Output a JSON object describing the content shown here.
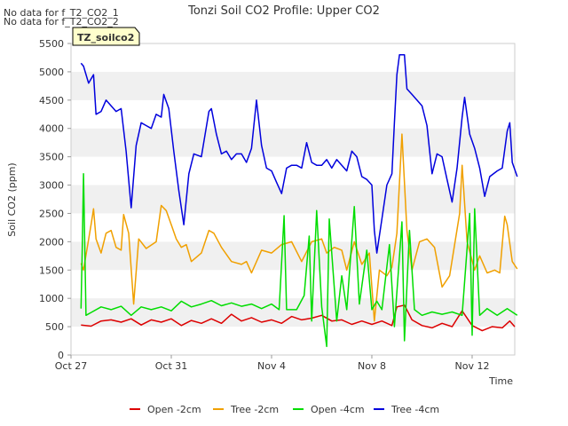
{
  "no_data_notes": [
    "No data for f_T2_CO2_1",
    "No data for f_T2_CO2_2"
  ],
  "badge": {
    "label": "TZ_soilco2",
    "fill": "#ffffcc",
    "text_color": "#990000"
  },
  "colors": {
    "band": "#f0f0f0",
    "axis": "#cccccc"
  },
  "chart_data": {
    "type": "line",
    "title": "Tonzi Soil CO2 Profile: Upper CO2",
    "xlabel": "Time",
    "ylabel": "Soil CO2 (ppm)",
    "xlim": [
      0,
      17.7
    ],
    "ylim": [
      0,
      5500
    ],
    "yticks": [
      0,
      500,
      1000,
      1500,
      2000,
      2500,
      3000,
      3500,
      4000,
      4500,
      5000,
      5500
    ],
    "xticks": [
      {
        "value": 0,
        "label": "Oct 27"
      },
      {
        "value": 4,
        "label": "Oct 31"
      },
      {
        "value": 8,
        "label": "Nov 4"
      },
      {
        "value": 12,
        "label": "Nov 8"
      },
      {
        "value": 16,
        "label": "Nov 12"
      }
    ],
    "legend_position": "bottom",
    "series": [
      {
        "name": "Open -2cm",
        "color": "#dd0000",
        "points": [
          [
            0.4,
            530
          ],
          [
            0.8,
            510
          ],
          [
            1.2,
            600
          ],
          [
            1.6,
            620
          ],
          [
            2.0,
            580
          ],
          [
            2.4,
            640
          ],
          [
            2.8,
            530
          ],
          [
            3.2,
            620
          ],
          [
            3.6,
            580
          ],
          [
            4.0,
            640
          ],
          [
            4.4,
            520
          ],
          [
            4.8,
            610
          ],
          [
            5.2,
            560
          ],
          [
            5.6,
            640
          ],
          [
            6.0,
            560
          ],
          [
            6.4,
            720
          ],
          [
            6.8,
            600
          ],
          [
            7.2,
            660
          ],
          [
            7.6,
            580
          ],
          [
            8.0,
            620
          ],
          [
            8.4,
            560
          ],
          [
            8.8,
            680
          ],
          [
            9.2,
            620
          ],
          [
            9.6,
            650
          ],
          [
            10.0,
            700
          ],
          [
            10.4,
            600
          ],
          [
            10.8,
            620
          ],
          [
            11.2,
            540
          ],
          [
            11.6,
            600
          ],
          [
            12.0,
            540
          ],
          [
            12.4,
            600
          ],
          [
            12.8,
            520
          ],
          [
            13.0,
            850
          ],
          [
            13.3,
            880
          ],
          [
            13.6,
            620
          ],
          [
            14.0,
            520
          ],
          [
            14.4,
            480
          ],
          [
            14.8,
            560
          ],
          [
            15.2,
            500
          ],
          [
            15.6,
            780
          ],
          [
            16.0,
            520
          ],
          [
            16.4,
            430
          ],
          [
            16.8,
            500
          ],
          [
            17.2,
            480
          ],
          [
            17.5,
            600
          ],
          [
            17.7,
            500
          ]
        ]
      },
      {
        "name": "Tree -2cm",
        "color": "#f0a000",
        "points": [
          [
            0.4,
            1620
          ],
          [
            0.5,
            1500
          ],
          [
            0.8,
            2300
          ],
          [
            0.9,
            2580
          ],
          [
            1.0,
            2050
          ],
          [
            1.2,
            1800
          ],
          [
            1.4,
            2150
          ],
          [
            1.6,
            2200
          ],
          [
            1.8,
            1900
          ],
          [
            2.0,
            1850
          ],
          [
            2.1,
            2480
          ],
          [
            2.3,
            2150
          ],
          [
            2.5,
            900
          ],
          [
            2.7,
            2050
          ],
          [
            3.0,
            1880
          ],
          [
            3.4,
            2000
          ],
          [
            3.6,
            2640
          ],
          [
            3.8,
            2550
          ],
          [
            4.0,
            2300
          ],
          [
            4.2,
            2050
          ],
          [
            4.4,
            1900
          ],
          [
            4.6,
            1950
          ],
          [
            4.8,
            1650
          ],
          [
            5.2,
            1800
          ],
          [
            5.5,
            2200
          ],
          [
            5.7,
            2150
          ],
          [
            6.0,
            1900
          ],
          [
            6.4,
            1650
          ],
          [
            6.8,
            1600
          ],
          [
            7.0,
            1650
          ],
          [
            7.2,
            1450
          ],
          [
            7.6,
            1850
          ],
          [
            8.0,
            1800
          ],
          [
            8.4,
            1950
          ],
          [
            8.8,
            2000
          ],
          [
            9.2,
            1650
          ],
          [
            9.6,
            2000
          ],
          [
            10.0,
            2050
          ],
          [
            10.2,
            1800
          ],
          [
            10.5,
            1900
          ],
          [
            10.8,
            1850
          ],
          [
            11.0,
            1500
          ],
          [
            11.3,
            2000
          ],
          [
            11.6,
            1600
          ],
          [
            11.9,
            1800
          ],
          [
            12.1,
            600
          ],
          [
            12.3,
            1500
          ],
          [
            12.6,
            1400
          ],
          [
            12.8,
            1550
          ],
          [
            13.0,
            2150
          ],
          [
            13.2,
            3900
          ],
          [
            13.4,
            2200
          ],
          [
            13.6,
            1500
          ],
          [
            13.9,
            2000
          ],
          [
            14.2,
            2050
          ],
          [
            14.5,
            1900
          ],
          [
            14.8,
            1200
          ],
          [
            15.1,
            1400
          ],
          [
            15.5,
            2500
          ],
          [
            15.6,
            3350
          ],
          [
            15.8,
            2000
          ],
          [
            16.1,
            1500
          ],
          [
            16.3,
            1750
          ],
          [
            16.6,
            1450
          ],
          [
            16.9,
            1500
          ],
          [
            17.1,
            1450
          ],
          [
            17.3,
            2450
          ],
          [
            17.4,
            2300
          ],
          [
            17.6,
            1650
          ],
          [
            17.8,
            1520
          ]
        ]
      },
      {
        "name": "Open -4cm",
        "color": "#00dd00",
        "points": [
          [
            0.4,
            820
          ],
          [
            0.45,
            1900
          ],
          [
            0.5,
            3200
          ],
          [
            0.6,
            700
          ],
          [
            0.8,
            750
          ],
          [
            1.2,
            850
          ],
          [
            1.6,
            800
          ],
          [
            2.0,
            860
          ],
          [
            2.4,
            700
          ],
          [
            2.8,
            850
          ],
          [
            3.2,
            800
          ],
          [
            3.6,
            850
          ],
          [
            4.0,
            780
          ],
          [
            4.4,
            950
          ],
          [
            4.8,
            850
          ],
          [
            5.2,
            900
          ],
          [
            5.6,
            960
          ],
          [
            6.0,
            870
          ],
          [
            6.4,
            920
          ],
          [
            6.8,
            860
          ],
          [
            7.2,
            900
          ],
          [
            7.6,
            820
          ],
          [
            8.0,
            900
          ],
          [
            8.3,
            800
          ],
          [
            8.5,
            2460
          ],
          [
            8.6,
            800
          ],
          [
            9.0,
            800
          ],
          [
            9.3,
            1050
          ],
          [
            9.5,
            2100
          ],
          [
            9.6,
            600
          ],
          [
            9.8,
            2550
          ],
          [
            10.0,
            850
          ],
          [
            10.2,
            150
          ],
          [
            10.3,
            2400
          ],
          [
            10.6,
            600
          ],
          [
            10.8,
            1400
          ],
          [
            11.0,
            800
          ],
          [
            11.3,
            2620
          ],
          [
            11.5,
            900
          ],
          [
            11.8,
            1850
          ],
          [
            12.0,
            800
          ],
          [
            12.2,
            950
          ],
          [
            12.4,
            800
          ],
          [
            12.7,
            1950
          ],
          [
            12.9,
            500
          ],
          [
            13.2,
            2350
          ],
          [
            13.3,
            250
          ],
          [
            13.5,
            2200
          ],
          [
            13.7,
            800
          ],
          [
            14.0,
            700
          ],
          [
            14.4,
            760
          ],
          [
            14.8,
            720
          ],
          [
            15.2,
            760
          ],
          [
            15.6,
            700
          ],
          [
            15.9,
            2500
          ],
          [
            16.0,
            350
          ],
          [
            16.1,
            2580
          ],
          [
            16.3,
            700
          ],
          [
            16.6,
            820
          ],
          [
            17.0,
            700
          ],
          [
            17.4,
            820
          ],
          [
            17.8,
            700
          ]
        ]
      },
      {
        "name": "Tree -4cm",
        "color": "#0000dd",
        "points": [
          [
            0.4,
            5150
          ],
          [
            0.5,
            5100
          ],
          [
            0.7,
            4800
          ],
          [
            0.9,
            4950
          ],
          [
            1.0,
            4250
          ],
          [
            1.2,
            4300
          ],
          [
            1.4,
            4500
          ],
          [
            1.6,
            4400
          ],
          [
            1.8,
            4300
          ],
          [
            2.0,
            4350
          ],
          [
            2.2,
            3600
          ],
          [
            2.4,
            2600
          ],
          [
            2.6,
            3700
          ],
          [
            2.8,
            4100
          ],
          [
            3.0,
            4050
          ],
          [
            3.2,
            4000
          ],
          [
            3.4,
            4250
          ],
          [
            3.6,
            4200
          ],
          [
            3.7,
            4600
          ],
          [
            3.9,
            4350
          ],
          [
            4.1,
            3600
          ],
          [
            4.3,
            2900
          ],
          [
            4.5,
            2300
          ],
          [
            4.7,
            3200
          ],
          [
            4.9,
            3550
          ],
          [
            5.2,
            3500
          ],
          [
            5.5,
            4300
          ],
          [
            5.6,
            4350
          ],
          [
            5.8,
            3900
          ],
          [
            6.0,
            3550
          ],
          [
            6.2,
            3600
          ],
          [
            6.4,
            3450
          ],
          [
            6.6,
            3550
          ],
          [
            6.8,
            3550
          ],
          [
            7.0,
            3400
          ],
          [
            7.2,
            3650
          ],
          [
            7.4,
            4500
          ],
          [
            7.6,
            3700
          ],
          [
            7.8,
            3300
          ],
          [
            8.0,
            3250
          ],
          [
            8.2,
            3050
          ],
          [
            8.4,
            2850
          ],
          [
            8.6,
            3300
          ],
          [
            8.8,
            3350
          ],
          [
            9.0,
            3350
          ],
          [
            9.2,
            3300
          ],
          [
            9.4,
            3750
          ],
          [
            9.6,
            3400
          ],
          [
            9.8,
            3350
          ],
          [
            10.0,
            3350
          ],
          [
            10.2,
            3450
          ],
          [
            10.4,
            3300
          ],
          [
            10.6,
            3450
          ],
          [
            10.8,
            3350
          ],
          [
            11.0,
            3250
          ],
          [
            11.2,
            3600
          ],
          [
            11.4,
            3500
          ],
          [
            11.6,
            3150
          ],
          [
            11.8,
            3100
          ],
          [
            12.0,
            3000
          ],
          [
            12.1,
            2200
          ],
          [
            12.2,
            1800
          ],
          [
            12.4,
            2400
          ],
          [
            12.6,
            3000
          ],
          [
            12.8,
            3200
          ],
          [
            12.9,
            4100
          ],
          [
            13.0,
            4950
          ],
          [
            13.1,
            5300
          ],
          [
            13.3,
            5300
          ],
          [
            13.4,
            4700
          ],
          [
            13.6,
            4600
          ],
          [
            13.8,
            4500
          ],
          [
            14.0,
            4400
          ],
          [
            14.2,
            4050
          ],
          [
            14.4,
            3200
          ],
          [
            14.6,
            3550
          ],
          [
            14.8,
            3500
          ],
          [
            15.0,
            3100
          ],
          [
            15.2,
            2700
          ],
          [
            15.4,
            3300
          ],
          [
            15.6,
            4200
          ],
          [
            15.7,
            4550
          ],
          [
            15.9,
            3900
          ],
          [
            16.1,
            3650
          ],
          [
            16.3,
            3300
          ],
          [
            16.5,
            2800
          ],
          [
            16.7,
            3150
          ],
          [
            17.0,
            3250
          ],
          [
            17.2,
            3300
          ],
          [
            17.4,
            3950
          ],
          [
            17.5,
            4100
          ],
          [
            17.6,
            3400
          ],
          [
            17.8,
            3150
          ]
        ]
      }
    ]
  }
}
